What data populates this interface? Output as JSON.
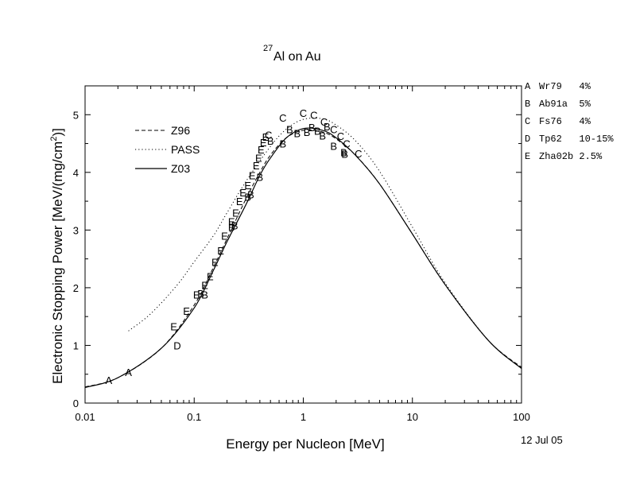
{
  "chart_data": {
    "type": "line",
    "title": "Al on Au",
    "title_superscript": "27",
    "xlabel": "Energy per Nucleon [MeV]",
    "ylabel_prefix": "Electronic Stopping Power [MeV/(mg/cm",
    "ylabel_superscript": "2",
    "ylabel_suffix": ")]",
    "date_label": "12 Jul 05",
    "x_scale": "log",
    "xlim": [
      0.01,
      100
    ],
    "ylim": [
      0,
      5.5
    ],
    "x_ticks": [
      0.01,
      0.1,
      1,
      10,
      100
    ],
    "x_tick_labels": [
      "0.01",
      "0.1",
      "1",
      "10",
      "100"
    ],
    "y_ticks": [
      0,
      1,
      2,
      3,
      4,
      5
    ],
    "y_tick_labels": [
      "0",
      "1",
      "2",
      "3",
      "4",
      "5"
    ],
    "grid": false,
    "legend_position": "upper-left",
    "series": [
      {
        "name": "Z96",
        "style": "dashed",
        "x": [
          0.01,
          0.02,
          0.05,
          0.1,
          0.15,
          0.2,
          0.3,
          0.4,
          0.5,
          0.7,
          1.0,
          1.5,
          2.0,
          3.0,
          5.0,
          10,
          20,
          50,
          100
        ],
        "y": [
          0.28,
          0.44,
          0.95,
          1.7,
          2.35,
          2.85,
          3.55,
          4.0,
          4.3,
          4.6,
          4.73,
          4.7,
          4.58,
          4.3,
          3.8,
          2.93,
          2.05,
          1.08,
          0.62
        ]
      },
      {
        "name": "PASS",
        "style": "dotted",
        "x": [
          0.025,
          0.04,
          0.07,
          0.1,
          0.15,
          0.2,
          0.3,
          0.5,
          0.7,
          1.0,
          1.5,
          2.0,
          3.0,
          5.0,
          10,
          20,
          50,
          100
        ],
        "y": [
          1.25,
          1.55,
          2.05,
          2.45,
          2.9,
          3.3,
          3.85,
          4.45,
          4.75,
          4.92,
          4.93,
          4.82,
          4.55,
          4.02,
          3.05,
          2.08,
          1.08,
          0.6
        ]
      },
      {
        "name": "Z03",
        "style": "solid",
        "x": [
          0.01,
          0.02,
          0.05,
          0.1,
          0.15,
          0.2,
          0.3,
          0.4,
          0.5,
          0.7,
          1.0,
          1.5,
          2.0,
          3.0,
          5.0,
          10,
          20,
          50,
          100
        ],
        "y": [
          0.27,
          0.44,
          0.95,
          1.65,
          2.3,
          2.8,
          3.45,
          3.95,
          4.25,
          4.6,
          4.76,
          4.73,
          4.6,
          4.3,
          3.8,
          2.93,
          2.05,
          1.08,
          0.6
        ]
      }
    ],
    "markers": [
      {
        "label": "A",
        "x": 0.0165,
        "y": 0.4
      },
      {
        "label": "A",
        "x": 0.025,
        "y": 0.54
      },
      {
        "label": "D",
        "x": 0.07,
        "y": 1.0
      },
      {
        "label": "E",
        "x": 0.065,
        "y": 1.33
      },
      {
        "label": "E",
        "x": 0.085,
        "y": 1.6
      },
      {
        "label": "E",
        "x": 0.105,
        "y": 1.88
      },
      {
        "label": "B",
        "x": 0.115,
        "y": 1.9
      },
      {
        "label": "B",
        "x": 0.125,
        "y": 1.88
      },
      {
        "label": "E",
        "x": 0.125,
        "y": 2.05
      },
      {
        "label": "E",
        "x": 0.14,
        "y": 2.2
      },
      {
        "label": "E",
        "x": 0.155,
        "y": 2.45
      },
      {
        "label": "E",
        "x": 0.175,
        "y": 2.65
      },
      {
        "label": "E",
        "x": 0.19,
        "y": 2.9
      },
      {
        "label": "B",
        "x": 0.22,
        "y": 3.05
      },
      {
        "label": "B",
        "x": 0.235,
        "y": 3.08
      },
      {
        "label": "E",
        "x": 0.22,
        "y": 3.15
      },
      {
        "label": "E",
        "x": 0.24,
        "y": 3.3
      },
      {
        "label": "E",
        "x": 0.26,
        "y": 3.5
      },
      {
        "label": "E",
        "x": 0.28,
        "y": 3.65
      },
      {
        "label": "B",
        "x": 0.31,
        "y": 3.58
      },
      {
        "label": "B",
        "x": 0.33,
        "y": 3.62
      },
      {
        "label": "E",
        "x": 0.31,
        "y": 3.78
      },
      {
        "label": "E",
        "x": 0.34,
        "y": 3.95
      },
      {
        "label": "E",
        "x": 0.37,
        "y": 4.12
      },
      {
        "label": "E",
        "x": 0.39,
        "y": 4.25
      },
      {
        "label": "E",
        "x": 0.41,
        "y": 4.4
      },
      {
        "label": "E",
        "x": 0.43,
        "y": 4.52
      },
      {
        "label": "E",
        "x": 0.45,
        "y": 4.62
      },
      {
        "label": "B",
        "x": 0.4,
        "y": 3.92
      },
      {
        "label": "C",
        "x": 0.48,
        "y": 4.65
      },
      {
        "label": "B",
        "x": 0.5,
        "y": 4.55
      },
      {
        "label": "B",
        "x": 0.65,
        "y": 4.5
      },
      {
        "label": "C",
        "x": 0.65,
        "y": 4.95
      },
      {
        "label": "B",
        "x": 0.75,
        "y": 4.75
      },
      {
        "label": "B",
        "x": 0.88,
        "y": 4.68
      },
      {
        "label": "C",
        "x": 1.0,
        "y": 5.03
      },
      {
        "label": "B",
        "x": 1.08,
        "y": 4.7
      },
      {
        "label": "B",
        "x": 1.2,
        "y": 4.78
      },
      {
        "label": "C",
        "x": 1.25,
        "y": 5.0
      },
      {
        "label": "B",
        "x": 1.35,
        "y": 4.72
      },
      {
        "label": "B",
        "x": 1.5,
        "y": 4.64
      },
      {
        "label": "C",
        "x": 1.55,
        "y": 4.88
      },
      {
        "label": "B",
        "x": 1.65,
        "y": 4.8
      },
      {
        "label": "C",
        "x": 1.9,
        "y": 4.75
      },
      {
        "label": "B",
        "x": 1.9,
        "y": 4.46
      },
      {
        "label": "C",
        "x": 2.2,
        "y": 4.63
      },
      {
        "label": "B",
        "x": 2.35,
        "y": 4.35
      },
      {
        "label": "B",
        "x": 2.4,
        "y": 4.32
      },
      {
        "label": "C",
        "x": 2.5,
        "y": 4.5
      },
      {
        "label": "C",
        "x": 3.2,
        "y": 4.33
      }
    ],
    "reference_key": [
      {
        "letter": "A",
        "text": "Wr79   4%"
      },
      {
        "letter": "B",
        "text": "Ab91a  5%"
      },
      {
        "letter": "C",
        "text": "Fs76   4%"
      },
      {
        "letter": "D",
        "text": "Tp62   10-15%"
      },
      {
        "letter": "E",
        "text": "Zha02b 2.5%"
      }
    ]
  }
}
